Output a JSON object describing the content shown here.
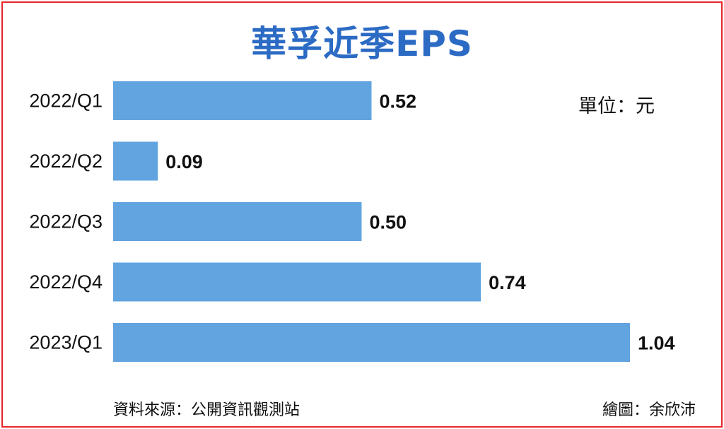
{
  "header": {
    "title": "華孚近季EPS",
    "unit": "單位：元"
  },
  "footer": {
    "source": "資料來源：公開資訊觀測站",
    "credit": "繪圖：余欣沛"
  },
  "colors": {
    "bar": "#62a4e0",
    "title": "#2c6bc4",
    "border": "#e8262b"
  },
  "chart_data": {
    "type": "bar",
    "orientation": "horizontal",
    "title": "華孚近季EPS",
    "unit": "元",
    "categories": [
      "2022/Q1",
      "2022/Q2",
      "2022/Q3",
      "2022/Q4",
      "2023/Q1"
    ],
    "values": [
      0.52,
      0.09,
      0.5,
      0.74,
      1.04
    ],
    "value_labels": [
      "0.52",
      "0.09",
      "0.50",
      "0.74",
      "1.04"
    ],
    "xlim": [
      0,
      1.04
    ],
    "grid": false,
    "legend": "none"
  }
}
